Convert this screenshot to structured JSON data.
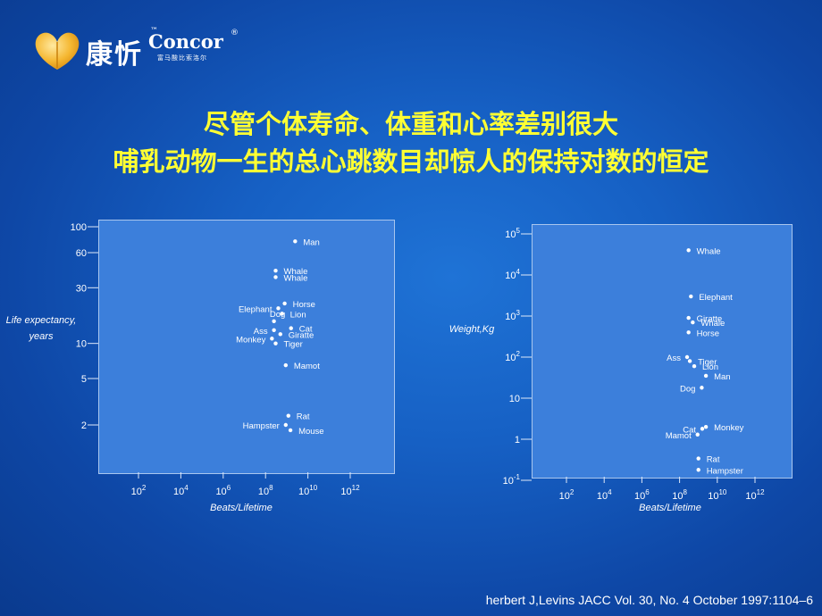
{
  "logo": {
    "brand_cn": "康忻",
    "brand_en": "Concor",
    "tm": "™",
    "reg": "®",
    "sub": "富马酸比索洛尔"
  },
  "title": {
    "line1": "尽管个体寿命、体重和心率差别很大",
    "line2": "哺乳动物一生的总心跳数目却惊人的保持对数的恒定"
  },
  "footer": "herbert J,Levins JACC Vol. 30, No. 4 October 1997:1104–6",
  "colors": {
    "title": "#ffff33",
    "background": "#1660c4",
    "plot": "#3c7fdb",
    "text": "#ffffff"
  },
  "chart_data": [
    {
      "type": "scatter",
      "xscale": "log",
      "yscale": "log",
      "xlabel": "Beats/Lifetime",
      "ylabel": "Life expectancy, years",
      "xticks": [
        {
          "value": 100,
          "base": "10",
          "exp": "2"
        },
        {
          "value": 10000,
          "base": "10",
          "exp": "4"
        },
        {
          "value": 1000000,
          "base": "10",
          "exp": "6"
        },
        {
          "value": 100000000,
          "base": "10",
          "exp": "8"
        },
        {
          "value": 10000000000,
          "base": "10",
          "exp": "10"
        },
        {
          "value": 1000000000000,
          "base": "10",
          "exp": "12"
        }
      ],
      "yticks": [
        {
          "value": 100,
          "label": "100"
        },
        {
          "value": 60,
          "label": "60"
        },
        {
          "value": 30,
          "label": "30"
        },
        {
          "value": 10,
          "label": "10"
        },
        {
          "value": 5,
          "label": "5"
        },
        {
          "value": 2,
          "label": "2"
        }
      ],
      "points": [
        {
          "label": "Man",
          "x": 2500000000.0,
          "y": 75,
          "side": "right"
        },
        {
          "label": "Whale",
          "x": 300000000.0,
          "y": 42,
          "side": "right"
        },
        {
          "label": "Whale",
          "x": 300000000.0,
          "y": 37,
          "side": "right"
        },
        {
          "label": "Horse",
          "x": 800000000.0,
          "y": 22,
          "side": "right"
        },
        {
          "label": "Elephant",
          "x": 400000000.0,
          "y": 20,
          "side": "left"
        },
        {
          "label": "Lion",
          "x": 600000000.0,
          "y": 18,
          "side": "right"
        },
        {
          "label": "Dog",
          "x": 250000000.0,
          "y": 15.5,
          "side": "above"
        },
        {
          "label": "Cat",
          "x": 1600000000.0,
          "y": 13.5,
          "side": "right"
        },
        {
          "label": "Ass",
          "x": 250000000.0,
          "y": 13,
          "side": "left"
        },
        {
          "label": "Giratte",
          "x": 500000000.0,
          "y": 12,
          "side": "right"
        },
        {
          "label": "Monkey",
          "x": 200000000.0,
          "y": 11,
          "side": "left"
        },
        {
          "label": "Tiger",
          "x": 300000000.0,
          "y": 10,
          "side": "right"
        },
        {
          "label": "Mamot",
          "x": 900000000.0,
          "y": 6.5,
          "side": "right"
        },
        {
          "label": "Rat",
          "x": 1200000000.0,
          "y": 2.4,
          "side": "right"
        },
        {
          "label": "Hampster",
          "x": 900000000.0,
          "y": 2.0,
          "side": "left"
        },
        {
          "label": "Mouse",
          "x": 1500000000.0,
          "y": 1.8,
          "side": "right"
        }
      ]
    },
    {
      "type": "scatter",
      "xscale": "log",
      "yscale": "log",
      "xlabel": "Beats/Lifetime",
      "ylabel": "Weight,Kg",
      "xticks": [
        {
          "value": 100,
          "base": "10",
          "exp": "2"
        },
        {
          "value": 10000,
          "base": "10",
          "exp": "4"
        },
        {
          "value": 1000000,
          "base": "10",
          "exp": "6"
        },
        {
          "value": 100000000,
          "base": "10",
          "exp": "8"
        },
        {
          "value": 10000000000,
          "base": "10",
          "exp": "10"
        },
        {
          "value": 1000000000000,
          "base": "10",
          "exp": "12"
        }
      ],
      "yticks": [
        {
          "value": 100000,
          "base": "10",
          "exp": "5"
        },
        {
          "value": 10000,
          "base": "10",
          "exp": "4"
        },
        {
          "value": 1000,
          "base": "10",
          "exp": "3"
        },
        {
          "value": 100,
          "base": "10",
          "exp": "2"
        },
        {
          "value": 10,
          "base": "10",
          "exp": ""
        },
        {
          "value": 1,
          "base": "1",
          "exp": ""
        },
        {
          "value": 0.1,
          "base": "10",
          "exp": "-1"
        }
      ],
      "points": [
        {
          "label": "Whale",
          "x": 300000000.0,
          "y": 40000,
          "side": "right"
        },
        {
          "label": "Elephant",
          "x": 400000000.0,
          "y": 3000,
          "side": "right"
        },
        {
          "label": "Giratte",
          "x": 300000000.0,
          "y": 900,
          "side": "right"
        },
        {
          "label": "Whale",
          "x": 500000000.0,
          "y": 700,
          "side": "right"
        },
        {
          "label": "Horse",
          "x": 300000000.0,
          "y": 400,
          "side": "right"
        },
        {
          "label": "Ass",
          "x": 250000000.0,
          "y": 100,
          "side": "left"
        },
        {
          "label": "Tiger",
          "x": 350000000.0,
          "y": 80,
          "side": "right"
        },
        {
          "label": "Lion",
          "x": 600000000.0,
          "y": 60,
          "side": "right"
        },
        {
          "label": "Man",
          "x": 2500000000.0,
          "y": 35,
          "side": "right"
        },
        {
          "label": "Dog",
          "x": 1500000000.0,
          "y": 18,
          "side": "left"
        },
        {
          "label": "Monkey",
          "x": 2500000000.0,
          "y": 2.0,
          "side": "right"
        },
        {
          "label": "Cat",
          "x": 1600000000.0,
          "y": 1.8,
          "side": "left"
        },
        {
          "label": "Mamot",
          "x": 900000000.0,
          "y": 1.3,
          "side": "left"
        },
        {
          "label": "Rat",
          "x": 1000000000.0,
          "y": 0.34,
          "side": "right"
        },
        {
          "label": "Hampster",
          "x": 1000000000.0,
          "y": 0.18,
          "side": "right"
        }
      ]
    }
  ]
}
